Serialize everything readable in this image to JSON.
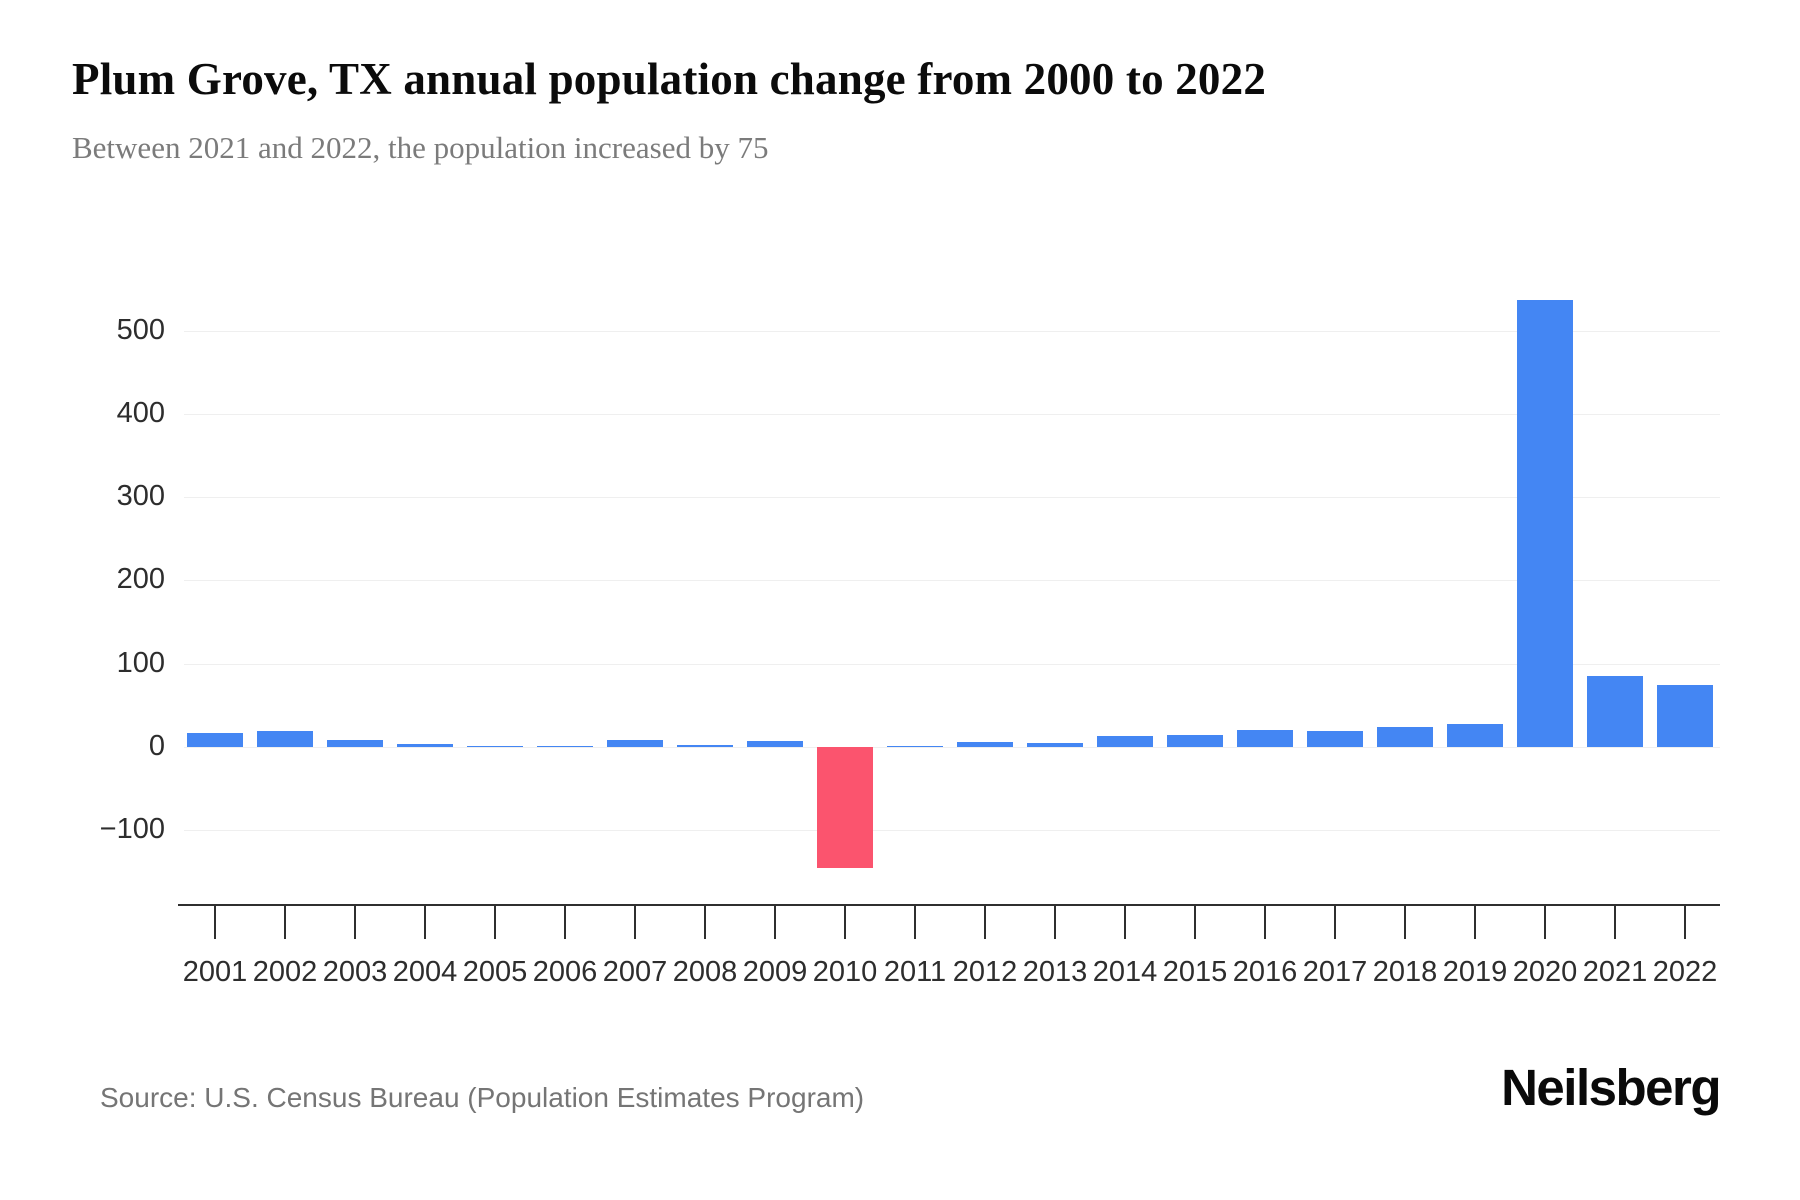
{
  "header": {
    "title": "Plum Grove, TX annual population change from 2000 to 2022",
    "subtitle": "Between 2021 and 2022, the population increased by 75"
  },
  "footer": {
    "source": "Source: U.S. Census Bureau (Population Estimates Program)",
    "brand": "Neilsberg"
  },
  "chart_data": {
    "type": "bar",
    "title": "Plum Grove, TX annual population change from 2000 to 2022",
    "xlabel": "",
    "ylabel": "",
    "categories": [
      "2001",
      "2002",
      "2003",
      "2004",
      "2005",
      "2006",
      "2007",
      "2008",
      "2009",
      "2010",
      "2011",
      "2012",
      "2013",
      "2014",
      "2015",
      "2016",
      "2017",
      "2018",
      "2019",
      "2020",
      "2021",
      "2022"
    ],
    "values": [
      17,
      19,
      8,
      4,
      1,
      1,
      9,
      2,
      7,
      -145,
      1,
      6,
      5,
      13,
      14,
      21,
      19,
      24,
      28,
      537,
      85,
      75
    ],
    "yticks": [
      500,
      400,
      300,
      200,
      100,
      0,
      -100
    ],
    "ylim": [
      -160,
      560
    ],
    "grid": true,
    "legend": "none",
    "colors": {
      "positive_bar": "#4486F3",
      "negative_bar": "#FB546E",
      "gridline": "#efefef",
      "axis": "#2f2f2f",
      "tick_label": "#2d2d2d"
    }
  }
}
